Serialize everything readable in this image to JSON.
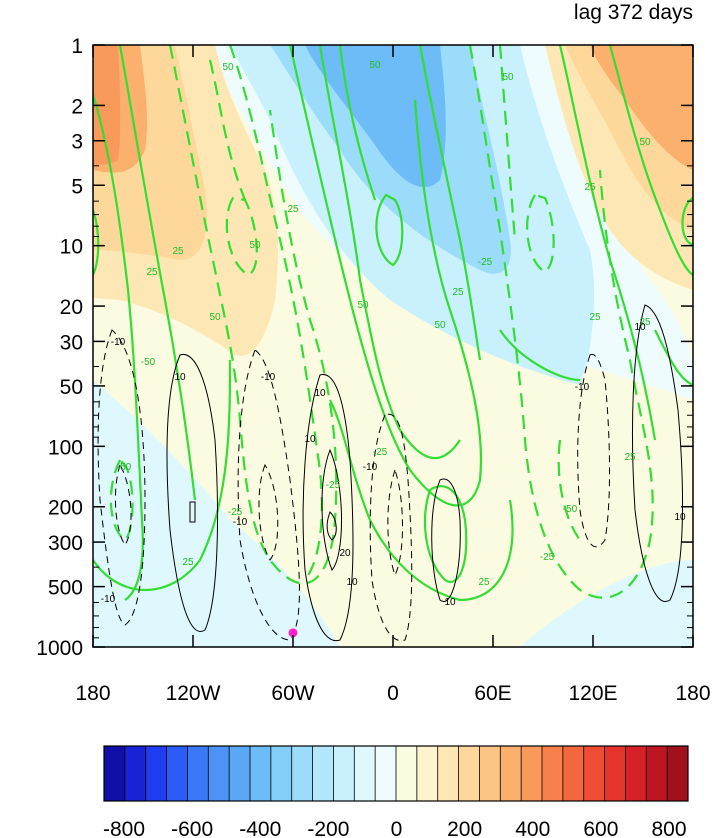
{
  "chart_data": {
    "type": "contour",
    "title": "lag 372 days",
    "x_ticks": [
      {
        "value": -180,
        "label": "180"
      },
      {
        "value": -120,
        "label": "120W"
      },
      {
        "value": -60,
        "label": "60W"
      },
      {
        "value": 0,
        "label": "0"
      },
      {
        "value": 60,
        "label": "60E"
      },
      {
        "value": 120,
        "label": "120E"
      },
      {
        "value": 180,
        "label": "180"
      }
    ],
    "xlim": [
      -180,
      180
    ],
    "y_scale": "log",
    "y_reversed": true,
    "ylim": [
      1,
      1000
    ],
    "y_ticks": [
      1,
      2,
      3,
      5,
      10,
      20,
      30,
      50,
      100,
      200,
      300,
      500,
      1000
    ],
    "colorbar": {
      "levels": [
        -800,
        -750,
        -700,
        -650,
        -600,
        -550,
        -500,
        -450,
        -400,
        -350,
        -300,
        -250,
        -200,
        -150,
        -100,
        -50,
        0,
        50,
        100,
        150,
        200,
        250,
        300,
        350,
        400,
        450,
        500,
        550,
        600,
        650,
        700,
        750,
        800
      ],
      "labels": [
        -800,
        -600,
        -400,
        -200,
        0,
        200,
        400,
        600,
        800
      ],
      "colors": [
        "#1010a8",
        "#1a24d6",
        "#1e3ef0",
        "#2b5cf5",
        "#3a79f5",
        "#4b93f5",
        "#5aa8f5",
        "#6dbcf7",
        "#82cefa",
        "#9bdcfb",
        "#b3e8fc",
        "#c9f1fd",
        "#def8fd",
        "#eefcfd",
        "#fbfbe2",
        "#fdf3cc",
        "#fde7b4",
        "#fdd89a",
        "#fcc583",
        "#fbb06e",
        "#f99a5c",
        "#f6814c",
        "#f3673e",
        "#ee4c33",
        "#e5342c",
        "#d52127",
        "#bd1522",
        "#a0101d"
      ]
    },
    "shaded_field_levels": [
      {
        "label": "lon=-180",
        "value": 300
      }
    ],
    "green_contour_labels": [
      "50",
      "25",
      "25",
      "50",
      "50",
      "25",
      "-25",
      "-50",
      "-50",
      "-25",
      "25",
      "-25",
      "-25",
      "25",
      "50",
      "-50",
      "25",
      "-25"
    ],
    "black_contour_labels": [
      "10",
      "-10",
      "10",
      "-10",
      "10",
      "-10",
      "10",
      "20",
      "-10",
      "-25",
      "10",
      "-10",
      "-10",
      "10",
      "10",
      "-10"
    ],
    "marker": {
      "lon": -60,
      "p": 850,
      "color": "#ff22cc"
    }
  }
}
